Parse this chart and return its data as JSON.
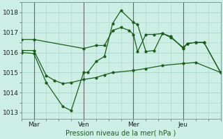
{
  "bg_color": "#cceee4",
  "line_color": "#1a5c1a",
  "grid_color": "#aad4c8",
  "xlabel": "Pression niveau de la mer( hPa )",
  "xlim": [
    0,
    24
  ],
  "ylim": [
    1012.7,
    1018.5
  ],
  "yticks": [
    1013,
    1014,
    1015,
    1016,
    1017,
    1018
  ],
  "xtick_positions": [
    1.5,
    7.5,
    13.5,
    19.5
  ],
  "xtick_labels": [
    "Mar",
    "Ven",
    "Mer",
    "Jeu"
  ],
  "vlines": [
    1.5,
    7.5,
    13.5,
    19.5
  ],
  "line1_x": [
    0,
    1.5,
    7.5,
    9,
    10,
    11,
    12,
    13,
    13.5,
    14,
    15,
    16,
    17,
    18,
    19.5,
    20,
    21,
    22,
    24
  ],
  "line1_y": [
    1016.65,
    1016.65,
    1016.2,
    1016.35,
    1016.35,
    1017.1,
    1017.25,
    1017.1,
    1016.9,
    1016.05,
    1016.9,
    1016.9,
    1016.95,
    1016.8,
    1016.2,
    1016.45,
    1016.5,
    1016.5,
    1015.0
  ],
  "line2_x": [
    0,
    1.5,
    3,
    5,
    6,
    7.5,
    8,
    9,
    10,
    11,
    12,
    13.5,
    14,
    15,
    16,
    17,
    18,
    19.5,
    20,
    21,
    22,
    24
  ],
  "line2_y": [
    1016.0,
    1015.95,
    1014.5,
    1013.3,
    1013.1,
    1015.0,
    1015.0,
    1015.55,
    1015.8,
    1017.45,
    1018.1,
    1017.5,
    1017.4,
    1016.05,
    1016.1,
    1016.95,
    1016.75,
    1016.25,
    1016.45,
    1016.5,
    1016.5,
    1015.0
  ],
  "line3_x": [
    0,
    1.5,
    3,
    4,
    5,
    6,
    7.5,
    9,
    10,
    11,
    13.5,
    15,
    17,
    19.5,
    21,
    24
  ],
  "line3_y": [
    1016.1,
    1016.1,
    1014.85,
    1014.6,
    1014.45,
    1014.5,
    1014.65,
    1014.75,
    1014.88,
    1015.0,
    1015.1,
    1015.2,
    1015.35,
    1015.45,
    1015.5,
    1015.0
  ]
}
